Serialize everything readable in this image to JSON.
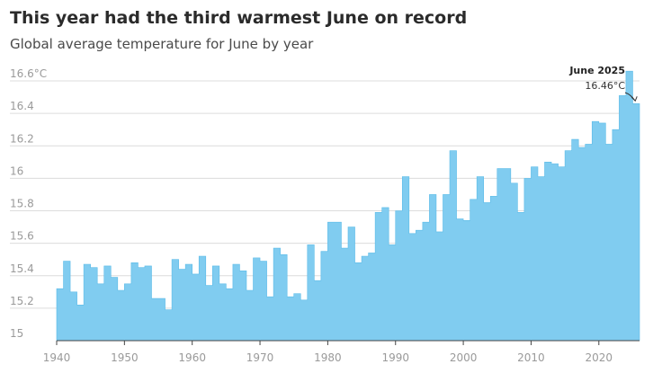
{
  "chart_data": {
    "type": "area",
    "title": "This year had the third warmest June on record",
    "subtitle": "Global average temperature for June by year",
    "xlabel": "",
    "ylabel": "",
    "ylim": [
      15,
      16.6
    ],
    "xlim": [
      1940,
      2025
    ],
    "grid": true,
    "y_ticks": [
      15,
      15.2,
      15.4,
      15.6,
      15.8,
      16,
      16.2,
      16.4,
      16.6
    ],
    "y_tick_labels": [
      "15",
      "15.2",
      "15.4",
      "15.6",
      "15.8",
      "16",
      "16.2",
      "16.4",
      "16.6°C"
    ],
    "x_ticks": [
      1940,
      1950,
      1960,
      1970,
      1980,
      1990,
      2000,
      2010,
      2020
    ],
    "x_tick_labels": [
      "1940",
      "1950",
      "1960",
      "1970",
      "1980",
      "1990",
      "2000",
      "2010",
      "2020"
    ],
    "x": [
      1940,
      1941,
      1942,
      1943,
      1944,
      1945,
      1946,
      1947,
      1948,
      1949,
      1950,
      1951,
      1952,
      1953,
      1954,
      1955,
      1956,
      1957,
      1958,
      1959,
      1960,
      1961,
      1962,
      1963,
      1964,
      1965,
      1966,
      1967,
      1968,
      1969,
      1970,
      1971,
      1972,
      1973,
      1974,
      1975,
      1976,
      1977,
      1978,
      1979,
      1980,
      1981,
      1982,
      1983,
      1984,
      1985,
      1986,
      1987,
      1988,
      1989,
      1990,
      1991,
      1992,
      1993,
      1994,
      1995,
      1996,
      1997,
      1998,
      1999,
      2000,
      2001,
      2002,
      2003,
      2004,
      2005,
      2006,
      2007,
      2008,
      2009,
      2010,
      2011,
      2012,
      2013,
      2014,
      2015,
      2016,
      2017,
      2018,
      2019,
      2020,
      2021,
      2022,
      2023,
      2024,
      2025
    ],
    "values": [
      15.32,
      15.49,
      15.3,
      15.22,
      15.47,
      15.45,
      15.35,
      15.46,
      15.39,
      15.31,
      15.35,
      15.48,
      15.45,
      15.46,
      15.26,
      15.26,
      15.19,
      15.5,
      15.44,
      15.47,
      15.41,
      15.52,
      15.34,
      15.46,
      15.35,
      15.32,
      15.47,
      15.43,
      15.31,
      15.51,
      15.49,
      15.27,
      15.57,
      15.53,
      15.27,
      15.29,
      15.25,
      15.59,
      15.37,
      15.55,
      15.73,
      15.73,
      15.57,
      15.7,
      15.48,
      15.52,
      15.54,
      15.79,
      15.82,
      15.59,
      15.8,
      16.01,
      15.66,
      15.68,
      15.73,
      15.9,
      15.67,
      15.9,
      16.17,
      15.75,
      15.74,
      15.87,
      16.01,
      15.85,
      15.89,
      16.06,
      16.06,
      15.97,
      15.79,
      16.0,
      16.07,
      16.01,
      16.1,
      16.09,
      16.07,
      16.17,
      16.24,
      16.19,
      16.21,
      16.35,
      16.34,
      16.21,
      16.3,
      16.51,
      16.66,
      16.46
    ],
    "annotation": {
      "year": 2025,
      "label": "June 2025",
      "value_text": "16.46°C"
    },
    "colors": {
      "fill": "#80ccf0",
      "stroke": "#5bbbe8",
      "grid": "#dcdcdc",
      "axis": "#444444",
      "tick_text": "#9a9a9a"
    }
  }
}
